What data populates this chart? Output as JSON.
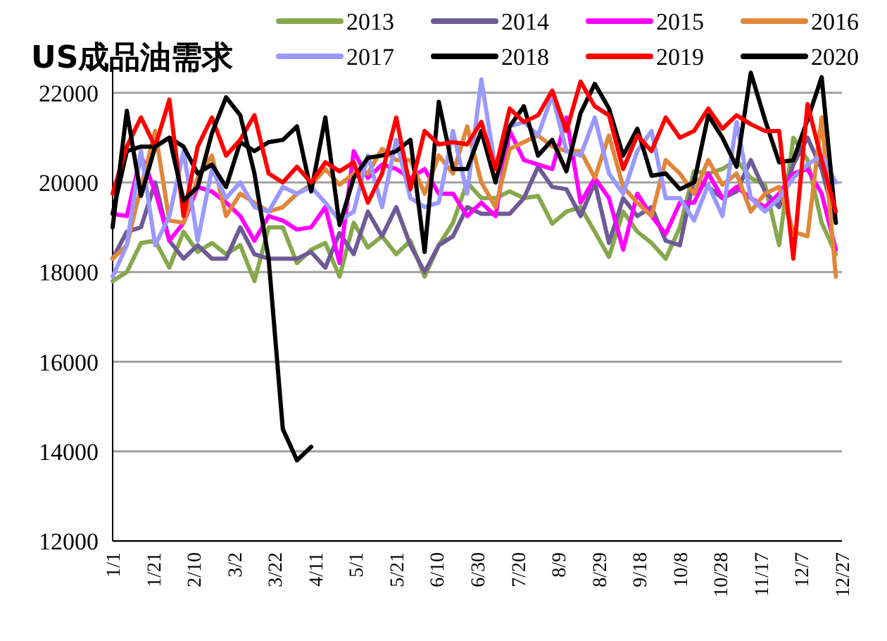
{
  "chart_data": {
    "type": "line",
    "title": "US成品油需求",
    "grid": "y",
    "legend": "top",
    "x": [
      "--01-01",
      "--01-08",
      "--01-15",
      "--01-22",
      "--01-29",
      "--02-05",
      "--02-12",
      "--02-19",
      "--02-26",
      "--03-05",
      "--03-12",
      "--03-19",
      "--03-26",
      "--04-02",
      "--04-09",
      "--04-16",
      "--04-23",
      "--04-30",
      "--05-07",
      "--05-14",
      "--05-21",
      "--05-28",
      "--06-04",
      "--06-11",
      "--06-18",
      "--06-25",
      "--07-02",
      "--07-09",
      "--07-16",
      "--07-23",
      "--07-30",
      "--08-06",
      "--08-13",
      "--08-20",
      "--08-27",
      "--09-03",
      "--09-10",
      "--09-17",
      "--09-24",
      "--10-01",
      "--10-08",
      "--10-15",
      "--10-22",
      "--10-29",
      "--11-05",
      "--11-12",
      "--11-19",
      "--11-26",
      "--12-03",
      "--12-10",
      "--12-17",
      "--12-24"
    ],
    "xlim": [
      "--01-01",
      "--12-27"
    ],
    "xticks": [
      {
        "value": "--01-01",
        "label": "1/1"
      },
      {
        "value": "--01-21",
        "label": "1/21"
      },
      {
        "value": "--02-10",
        "label": "2/10"
      },
      {
        "value": "--03-02",
        "label": "3/2"
      },
      {
        "value": "--03-22",
        "label": "3/22"
      },
      {
        "value": "--04-11",
        "label": "4/11"
      },
      {
        "value": "--05-01",
        "label": "5/1"
      },
      {
        "value": "--05-21",
        "label": "5/21"
      },
      {
        "value": "--06-10",
        "label": "6/10"
      },
      {
        "value": "--06-30",
        "label": "6/30"
      },
      {
        "value": "--07-20",
        "label": "7/20"
      },
      {
        "value": "--08-09",
        "label": "8/9"
      },
      {
        "value": "--08-29",
        "label": "8/29"
      },
      {
        "value": "--09-18",
        "label": "9/18"
      },
      {
        "value": "--10-08",
        "label": "10/8"
      },
      {
        "value": "--10-28",
        "label": "10/28"
      },
      {
        "value": "--11-17",
        "label": "11/17"
      },
      {
        "value": "--12-07",
        "label": "12/7"
      },
      {
        "value": "--12-27",
        "label": "12/27"
      }
    ],
    "ylim": [
      12000,
      22500
    ],
    "yticks": [
      12000,
      14000,
      16000,
      18000,
      20000,
      22000
    ],
    "series": [
      {
        "name": "2013",
        "color": "#86a84c",
        "values": [
          17800,
          18000,
          18650,
          18700,
          18100,
          18900,
          18450,
          18650,
          18400,
          18600,
          17800,
          19000,
          19000,
          18200,
          18500,
          18650,
          17900,
          19100,
          18550,
          18800,
          18400,
          18700,
          17900,
          18600,
          19100,
          20000,
          19650,
          19650,
          19800,
          19650,
          19700,
          19080,
          19350,
          19450,
          18900,
          18340,
          19350,
          18900,
          18650,
          18300,
          19000,
          20250,
          20200,
          20300,
          20500,
          20100,
          19950,
          18600,
          21000,
          20500,
          19100,
          18400
        ]
      },
      {
        "name": "2014",
        "color": "#6e5a96",
        "values": [
          18300,
          18900,
          19000,
          20000,
          18700,
          18300,
          18600,
          18300,
          18300,
          19000,
          18400,
          18300,
          18300,
          18300,
          18450,
          18100,
          18870,
          18400,
          19350,
          18800,
          19450,
          18600,
          18000,
          18600,
          18800,
          19450,
          19300,
          19300,
          19300,
          19650,
          20350,
          19900,
          19850,
          19250,
          20000,
          18650,
          19650,
          19250,
          19450,
          18700,
          18600,
          20100,
          19900,
          19650,
          19800,
          20500,
          19800,
          19450,
          20400,
          21000,
          20300,
          19100
        ]
      },
      {
        "name": "2015",
        "color": "#ff00ff",
        "values": [
          19300,
          19250,
          20600,
          19800,
          18700,
          19100,
          19900,
          19800,
          19550,
          19250,
          18700,
          19250,
          19150,
          18950,
          19000,
          19450,
          18200,
          20700,
          20100,
          20400,
          20300,
          20100,
          20300,
          19750,
          19750,
          19250,
          19550,
          19250,
          21150,
          20500,
          20400,
          20300,
          21450,
          19550,
          20100,
          19650,
          18500,
          19750,
          19250,
          18850,
          19550,
          19550,
          20200,
          19650,
          19900,
          19650,
          19450,
          19750,
          20200,
          20300,
          19750,
          18500
        ]
      },
      {
        "name": "2016",
        "color": "#e0873a",
        "values": [
          18300,
          18600,
          19900,
          21150,
          19150,
          19100,
          20100,
          20600,
          19250,
          19750,
          19550,
          19350,
          19450,
          19750,
          19950,
          20300,
          19950,
          20200,
          20200,
          20750,
          20500,
          20500,
          19750,
          20600,
          20200,
          21250,
          20000,
          19450,
          20750,
          20900,
          21050,
          20800,
          20700,
          20700,
          20100,
          21050,
          19900,
          19550,
          19250,
          20500,
          20200,
          19750,
          20500,
          19950,
          20200,
          19350,
          19750,
          19900,
          18900,
          18800,
          21450,
          17900
        ]
      },
      {
        "name": "2017",
        "color": "#9999ff",
        "values": [
          17900,
          18600,
          20700,
          18600,
          19250,
          20700,
          18700,
          20300,
          19650,
          20000,
          19450,
          19350,
          19900,
          19750,
          19900,
          19550,
          19150,
          19350,
          20600,
          19450,
          20950,
          19650,
          19450,
          19550,
          21150,
          19750,
          22300,
          20300,
          21250,
          21350,
          21050,
          21950,
          20700,
          20600,
          21450,
          20200,
          19750,
          20700,
          21150,
          19650,
          19650,
          19150,
          19950,
          19250,
          21350,
          19650,
          19350,
          19650,
          20100,
          20400,
          20600,
          20000
        ]
      },
      {
        "name": "2018",
        "color": "#000000",
        "values": [
          19300,
          20700,
          20800,
          20800,
          21000,
          20800,
          20200,
          20400,
          19900,
          20900,
          20700,
          20900,
          20950,
          21250,
          19800,
          21450,
          19050,
          20100,
          20550,
          20600,
          20700,
          20950,
          18450,
          21800,
          20300,
          20300,
          21150,
          20000,
          21250,
          21700,
          20600,
          20950,
          20250,
          21550,
          22200,
          21650,
          20600,
          21200,
          20150,
          20200,
          19850,
          20000,
          21500,
          21000,
          20350,
          22450,
          21400,
          20450,
          20500,
          21400,
          22350,
          19100
        ]
      },
      {
        "name": "2019",
        "color": "#ff0000",
        "values": [
          19750,
          20800,
          21450,
          20800,
          21850,
          19250,
          20800,
          21450,
          20600,
          20950,
          21500,
          20200,
          20000,
          20350,
          20000,
          20450,
          20250,
          20450,
          19550,
          20200,
          21450,
          19850,
          21150,
          20850,
          20900,
          20850,
          21350,
          20300,
          21650,
          21350,
          21500,
          22050,
          21150,
          22250,
          21700,
          21500,
          20300,
          21050,
          20700,
          21450,
          21000,
          21150,
          21650,
          21200,
          21500,
          21300,
          21150,
          21150,
          18300,
          21750,
          20500,
          19350
        ]
      },
      {
        "name": "2020",
        "color": "#000000",
        "values": [
          19000,
          21600,
          19700,
          20800,
          21000,
          19600,
          19900,
          21100,
          21900,
          21500,
          20200,
          18300,
          14500,
          13800,
          14100,
          null,
          null,
          null,
          null,
          null,
          null,
          null,
          null,
          null,
          null,
          null,
          null,
          null,
          null,
          null,
          null,
          null,
          null,
          null,
          null,
          null,
          null,
          null,
          null,
          null,
          null,
          null,
          null,
          null,
          null,
          null,
          null,
          null,
          null,
          null,
          null,
          null
        ]
      }
    ]
  }
}
